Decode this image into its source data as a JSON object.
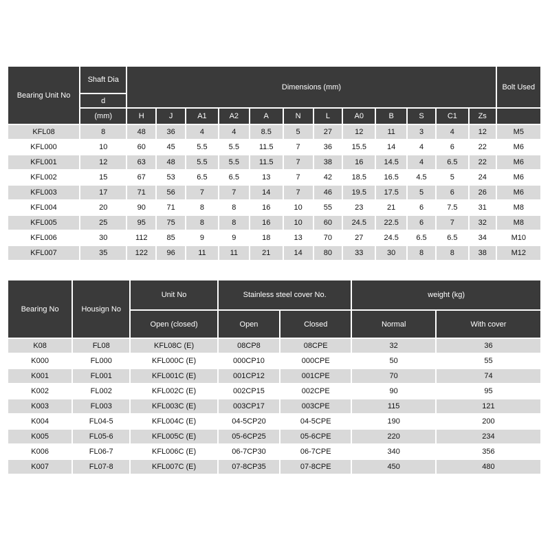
{
  "table1": {
    "header": {
      "bearing_unit_no": "Bearing Unit No",
      "shaft_dia": "Shaft Dia",
      "d": "d",
      "mm": "(mm)",
      "dimensions": "Dimensions (mm)",
      "bolt_used": "Bolt Used",
      "dim_columns": [
        "H",
        "J",
        "A1",
        "A2",
        "A",
        "N",
        "L",
        "A0",
        "B",
        "S",
        "C1",
        "Zs"
      ]
    },
    "rows": [
      [
        "KFL08",
        "8",
        "48",
        "36",
        "4",
        "4",
        "8.5",
        "5",
        "27",
        "12",
        "11",
        "3",
        "4",
        "12",
        "M5"
      ],
      [
        "KFL000",
        "10",
        "60",
        "45",
        "5.5",
        "5.5",
        "11.5",
        "7",
        "36",
        "15.5",
        "14",
        "4",
        "6",
        "22",
        "M6"
      ],
      [
        "KFL001",
        "12",
        "63",
        "48",
        "5.5",
        "5.5",
        "11.5",
        "7",
        "38",
        "16",
        "14.5",
        "4",
        "6.5",
        "22",
        "M6"
      ],
      [
        "KFL002",
        "15",
        "67",
        "53",
        "6.5",
        "6.5",
        "13",
        "7",
        "42",
        "18.5",
        "16.5",
        "4.5",
        "5",
        "24",
        "M6"
      ],
      [
        "KFL003",
        "17",
        "71",
        "56",
        "7",
        "7",
        "14",
        "7",
        "46",
        "19.5",
        "17.5",
        "5",
        "6",
        "26",
        "M6"
      ],
      [
        "KFL004",
        "20",
        "90",
        "71",
        "8",
        "8",
        "16",
        "10",
        "55",
        "23",
        "21",
        "6",
        "7.5",
        "31",
        "M8"
      ],
      [
        "KFL005",
        "25",
        "95",
        "75",
        "8",
        "8",
        "16",
        "10",
        "60",
        "24.5",
        "22.5",
        "6",
        "7",
        "32",
        "M8"
      ],
      [
        "KFL006",
        "30",
        "112",
        "85",
        "9",
        "9",
        "18",
        "13",
        "70",
        "27",
        "24.5",
        "6.5",
        "6.5",
        "34",
        "M10"
      ],
      [
        "KFL007",
        "35",
        "122",
        "96",
        "11",
        "11",
        "21",
        "14",
        "80",
        "33",
        "30",
        "8",
        "8",
        "38",
        "M12"
      ]
    ]
  },
  "table2": {
    "header": {
      "bearing_no": "Bearing No",
      "housing_no": "Housign No",
      "unit_no": "Unit No",
      "open_closed": "Open (closed)",
      "cover_no": "Stainless steel cover No.",
      "open": "Open",
      "closed": "Closed",
      "weight": "weight (kg)",
      "normal": "Normal",
      "with_cover": "With cover"
    },
    "rows": [
      [
        "K08",
        "FL08",
        "KFL08C (E)",
        "08CP8",
        "08CPE",
        "32",
        "36"
      ],
      [
        "K000",
        "FL000",
        "KFL000C (E)",
        "000CP10",
        "000CPE",
        "50",
        "55"
      ],
      [
        "K001",
        "FL001",
        "KFL001C (E)",
        "001CP12",
        "001CPE",
        "70",
        "74"
      ],
      [
        "K002",
        "FL002",
        "KFL002C (E)",
        "002CP15",
        "002CPE",
        "90",
        "95"
      ],
      [
        "K003",
        "FL003",
        "KFL003C (E)",
        "003CP17",
        "003CPE",
        "115",
        "121"
      ],
      [
        "K004",
        "FL04-5",
        "KFL004C (E)",
        "04-5CP20",
        "04-5CPE",
        "190",
        "200"
      ],
      [
        "K005",
        "FL05-6",
        "KFL005C (E)",
        "05-6CP25",
        "05-6CPE",
        "220",
        "234"
      ],
      [
        "K006",
        "FL06-7",
        "KFL006C (E)",
        "06-7CP30",
        "06-7CPE",
        "340",
        "356"
      ],
      [
        "K007",
        "FL07-8",
        "KFL007C (E)",
        "07-8CP35",
        "07-8CPE",
        "450",
        "480"
      ]
    ]
  }
}
